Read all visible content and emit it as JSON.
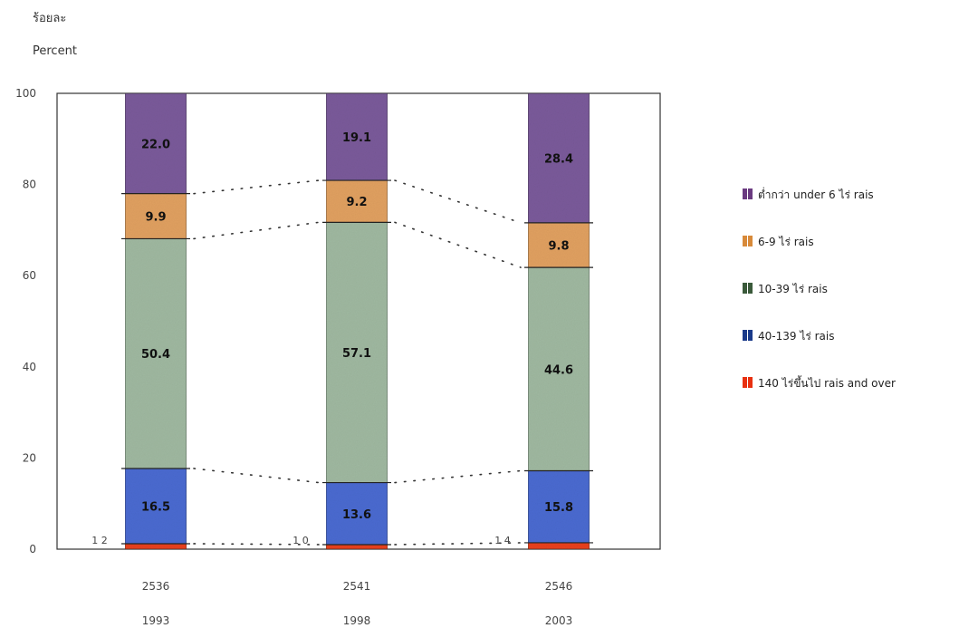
{
  "chart_data": {
    "type": "bar",
    "stacked": true,
    "y_title_thai": "ร้อยละ",
    "y_title": "Percent",
    "ylim": [
      0,
      100
    ],
    "y_ticks": [
      "0",
      "20",
      "40",
      "60",
      "80",
      "100"
    ],
    "categories": [
      {
        "th": "2536",
        "en": "1993"
      },
      {
        "th": "2541",
        "en": "1998"
      },
      {
        "th": "2546",
        "en": "2003"
      }
    ],
    "series": [
      {
        "name": "140 ไร่ขึ้นไป rais and over",
        "values": [
          1.2,
          1.0,
          1.4
        ],
        "labels": [
          "1 2",
          "1 0",
          "1 4"
        ],
        "color": "#e8401c"
      },
      {
        "name": "40-139 ไร่ rais",
        "values": [
          16.5,
          13.6,
          15.8
        ],
        "labels": [
          "16.5",
          "13.6",
          "15.8"
        ],
        "color": "#4a6ad0"
      },
      {
        "name": "10-39 ไร่ rais",
        "values": [
          50.4,
          57.1,
          44.6
        ],
        "labels": [
          "50.4",
          "57.1",
          "44.6"
        ],
        "color": "#9fb8a0"
      },
      {
        "name": "6-9 ไร่ rais",
        "values": [
          9.9,
          9.2,
          9.8
        ],
        "labels": [
          "9.9",
          "9.2",
          "9.8"
        ],
        "color": "#e0a060"
      },
      {
        "name": "ต่ำกว่า under 6 ไร่ rais",
        "values": [
          22.0,
          19.1,
          28.4
        ],
        "labels": [
          "22.0",
          "19.1",
          "28.4"
        ],
        "color": "#7a5a9a"
      }
    ],
    "legend": [
      {
        "label": "ต่ำกว่า under 6 ไร่ rais",
        "color": "#6a3a80"
      },
      {
        "label": "6-9 ไร่ rais",
        "color": "#d88a3a"
      },
      {
        "label": "10-39 ไร่ rais",
        "color": "#3a5a3a"
      },
      {
        "label": "40-139 ไร่ rais",
        "color": "#1a3a8a"
      },
      {
        "label": "140 ไร่ขึ้นไป rais and over",
        "color": "#e83010"
      }
    ],
    "legend_position": "right",
    "grid": false
  }
}
